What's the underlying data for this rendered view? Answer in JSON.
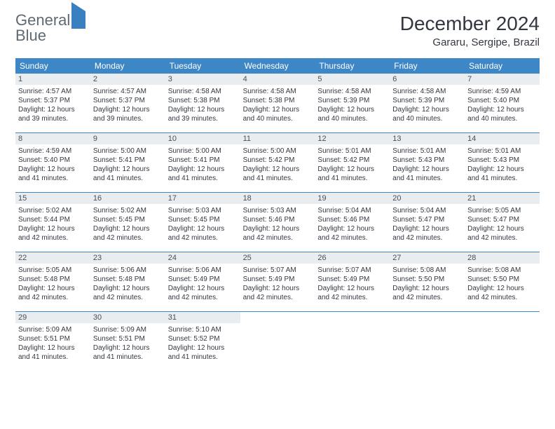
{
  "logo": {
    "word1": "General",
    "word2": "Blue"
  },
  "title": "December 2024",
  "location": "Gararu, Sergipe, Brazil",
  "columns": [
    "Sunday",
    "Monday",
    "Tuesday",
    "Wednesday",
    "Thursday",
    "Friday",
    "Saturday"
  ],
  "colors": {
    "header_bg": "#3d87c7",
    "header_fg": "#ffffff",
    "daynum_bg": "#e9edef",
    "text": "#333740",
    "rule": "#3d87c7",
    "logo_gray": "#5f6a72",
    "logo_blue": "#3a7fbf"
  },
  "weeks": [
    [
      {
        "n": "1",
        "sunrise": "4:57 AM",
        "sunset": "5:37 PM",
        "day_h": "12",
        "day_m": "39"
      },
      {
        "n": "2",
        "sunrise": "4:57 AM",
        "sunset": "5:37 PM",
        "day_h": "12",
        "day_m": "39"
      },
      {
        "n": "3",
        "sunrise": "4:58 AM",
        "sunset": "5:38 PM",
        "day_h": "12",
        "day_m": "39"
      },
      {
        "n": "4",
        "sunrise": "4:58 AM",
        "sunset": "5:38 PM",
        "day_h": "12",
        "day_m": "40"
      },
      {
        "n": "5",
        "sunrise": "4:58 AM",
        "sunset": "5:39 PM",
        "day_h": "12",
        "day_m": "40"
      },
      {
        "n": "6",
        "sunrise": "4:58 AM",
        "sunset": "5:39 PM",
        "day_h": "12",
        "day_m": "40"
      },
      {
        "n": "7",
        "sunrise": "4:59 AM",
        "sunset": "5:40 PM",
        "day_h": "12",
        "day_m": "40"
      }
    ],
    [
      {
        "n": "8",
        "sunrise": "4:59 AM",
        "sunset": "5:40 PM",
        "day_h": "12",
        "day_m": "41"
      },
      {
        "n": "9",
        "sunrise": "5:00 AM",
        "sunset": "5:41 PM",
        "day_h": "12",
        "day_m": "41"
      },
      {
        "n": "10",
        "sunrise": "5:00 AM",
        "sunset": "5:41 PM",
        "day_h": "12",
        "day_m": "41"
      },
      {
        "n": "11",
        "sunrise": "5:00 AM",
        "sunset": "5:42 PM",
        "day_h": "12",
        "day_m": "41"
      },
      {
        "n": "12",
        "sunrise": "5:01 AM",
        "sunset": "5:42 PM",
        "day_h": "12",
        "day_m": "41"
      },
      {
        "n": "13",
        "sunrise": "5:01 AM",
        "sunset": "5:43 PM",
        "day_h": "12",
        "day_m": "41"
      },
      {
        "n": "14",
        "sunrise": "5:01 AM",
        "sunset": "5:43 PM",
        "day_h": "12",
        "day_m": "41"
      }
    ],
    [
      {
        "n": "15",
        "sunrise": "5:02 AM",
        "sunset": "5:44 PM",
        "day_h": "12",
        "day_m": "42"
      },
      {
        "n": "16",
        "sunrise": "5:02 AM",
        "sunset": "5:45 PM",
        "day_h": "12",
        "day_m": "42"
      },
      {
        "n": "17",
        "sunrise": "5:03 AM",
        "sunset": "5:45 PM",
        "day_h": "12",
        "day_m": "42"
      },
      {
        "n": "18",
        "sunrise": "5:03 AM",
        "sunset": "5:46 PM",
        "day_h": "12",
        "day_m": "42"
      },
      {
        "n": "19",
        "sunrise": "5:04 AM",
        "sunset": "5:46 PM",
        "day_h": "12",
        "day_m": "42"
      },
      {
        "n": "20",
        "sunrise": "5:04 AM",
        "sunset": "5:47 PM",
        "day_h": "12",
        "day_m": "42"
      },
      {
        "n": "21",
        "sunrise": "5:05 AM",
        "sunset": "5:47 PM",
        "day_h": "12",
        "day_m": "42"
      }
    ],
    [
      {
        "n": "22",
        "sunrise": "5:05 AM",
        "sunset": "5:48 PM",
        "day_h": "12",
        "day_m": "42"
      },
      {
        "n": "23",
        "sunrise": "5:06 AM",
        "sunset": "5:48 PM",
        "day_h": "12",
        "day_m": "42"
      },
      {
        "n": "24",
        "sunrise": "5:06 AM",
        "sunset": "5:49 PM",
        "day_h": "12",
        "day_m": "42"
      },
      {
        "n": "25",
        "sunrise": "5:07 AM",
        "sunset": "5:49 PM",
        "day_h": "12",
        "day_m": "42"
      },
      {
        "n": "26",
        "sunrise": "5:07 AM",
        "sunset": "5:49 PM",
        "day_h": "12",
        "day_m": "42"
      },
      {
        "n": "27",
        "sunrise": "5:08 AM",
        "sunset": "5:50 PM",
        "day_h": "12",
        "day_m": "42"
      },
      {
        "n": "28",
        "sunrise": "5:08 AM",
        "sunset": "5:50 PM",
        "day_h": "12",
        "day_m": "42"
      }
    ],
    [
      {
        "n": "29",
        "sunrise": "5:09 AM",
        "sunset": "5:51 PM",
        "day_h": "12",
        "day_m": "41"
      },
      {
        "n": "30",
        "sunrise": "5:09 AM",
        "sunset": "5:51 PM",
        "day_h": "12",
        "day_m": "41"
      },
      {
        "n": "31",
        "sunrise": "5:10 AM",
        "sunset": "5:52 PM",
        "day_h": "12",
        "day_m": "41"
      },
      null,
      null,
      null,
      null
    ]
  ]
}
